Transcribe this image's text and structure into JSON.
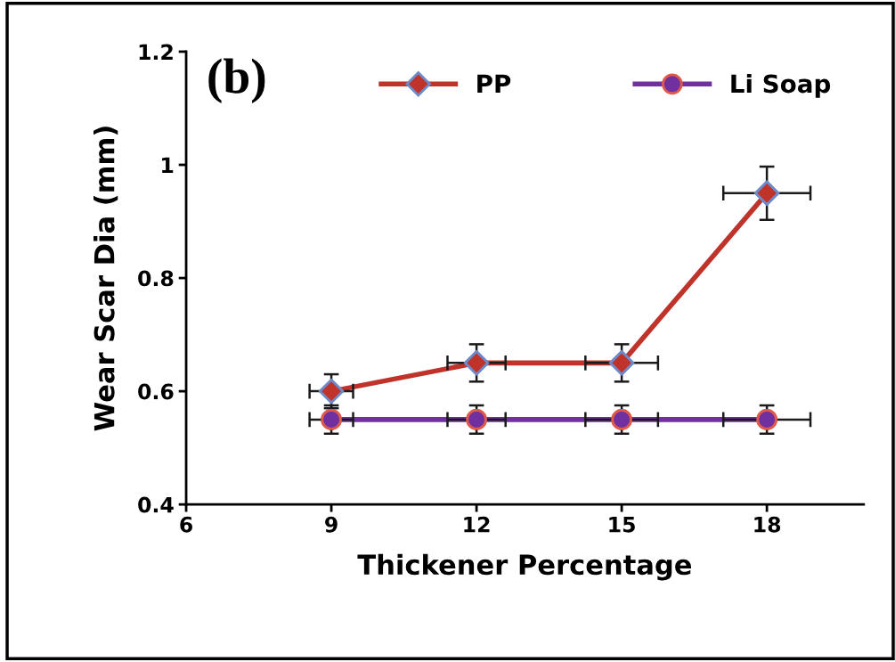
{
  "chart_data": {
    "type": "line",
    "title": "(b)",
    "xlabel": "Thickener Percentage",
    "ylabel": "Wear Scar Dia (mm)",
    "x": [
      9,
      12,
      15,
      18
    ],
    "series": [
      {
        "name": "PP",
        "color": "#c0332b",
        "marker": "diamond",
        "values": [
          0.6,
          0.65,
          0.65,
          0.95
        ],
        "errors": [
          0.03,
          0.033,
          0.033,
          0.047
        ],
        "xerrors": [
          0.45,
          0.6,
          0.75,
          0.9
        ]
      },
      {
        "name": "Li Soap",
        "color": "#7030a0",
        "marker": "circle",
        "values": [
          0.55,
          0.55,
          0.55,
          0.55
        ],
        "errors": [
          0.025,
          0.025,
          0.025,
          0.025
        ],
        "xerrors": [
          0.45,
          0.6,
          0.75,
          0.9
        ]
      }
    ],
    "xlim": [
      6,
      20
    ],
    "xticks": [
      6,
      9,
      12,
      15,
      18
    ],
    "ylim": [
      0.4,
      1.2
    ],
    "yticks": [
      0.4,
      0.6,
      0.8,
      1,
      1.2
    ],
    "grid": false,
    "legend": "top",
    "line_style": "solid"
  }
}
